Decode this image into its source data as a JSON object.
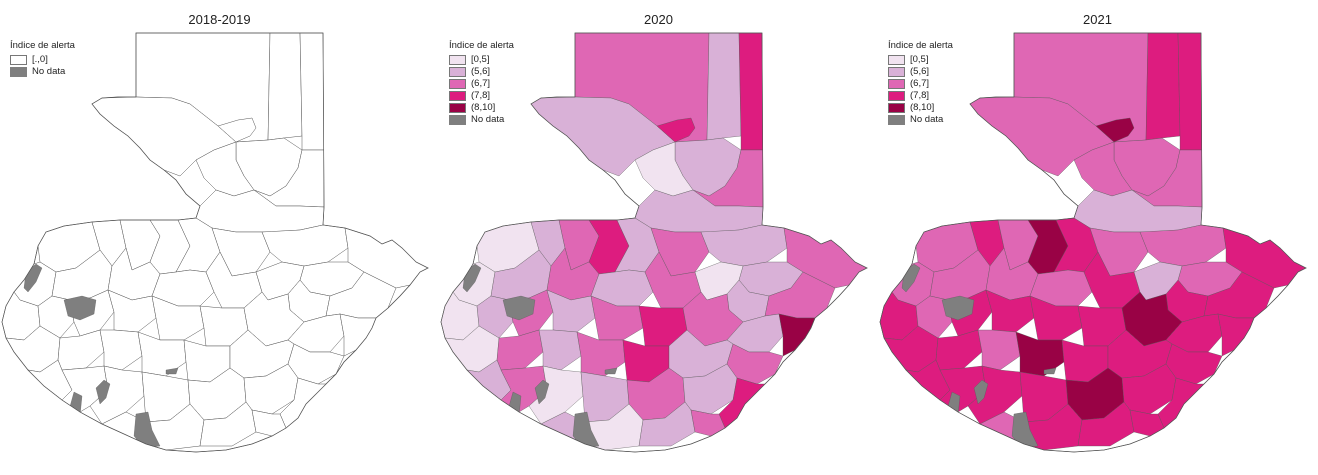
{
  "colors": {
    "c0": "#f1e3f0",
    "c1": "#d9b1d7",
    "c2": "#df67b4",
    "c3": "#dd1c7f",
    "c4": "#990245",
    "nodata": "#7f7f7f",
    "white": "#ffffff",
    "border": "#555555"
  },
  "panels": [
    {
      "title": "2018-2019",
      "legend": {
        "title": "Índice de alerta",
        "items": [
          {
            "label": "[.,0]",
            "color": "white"
          },
          {
            "label": "No data",
            "color": "nodata"
          }
        ]
      }
    },
    {
      "title": "2020",
      "legend": {
        "title": "Índice de alerta",
        "items": [
          {
            "label": "[0,5]",
            "color": "c0"
          },
          {
            "label": "(5,6]",
            "color": "c1"
          },
          {
            "label": "(6,7]",
            "color": "c2"
          },
          {
            "label": "(7,8]",
            "color": "c3"
          },
          {
            "label": "(8,10]",
            "color": "c4"
          },
          {
            "label": "No data",
            "color": "nodata"
          }
        ]
      }
    },
    {
      "title": "2021",
      "legend": {
        "title": "Índice de alerta",
        "items": [
          {
            "label": "[0,5]",
            "color": "c0"
          },
          {
            "label": "(5,6]",
            "color": "c1"
          },
          {
            "label": "(6,7]",
            "color": "c2"
          },
          {
            "label": "(7,8]",
            "color": "c3"
          },
          {
            "label": "(8,10]",
            "color": "c4"
          },
          {
            "label": "No data",
            "color": "nodata"
          }
        ]
      }
    }
  ]
}
